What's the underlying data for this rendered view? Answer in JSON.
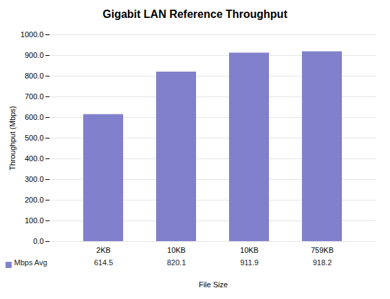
{
  "chart_data": {
    "type": "bar",
    "title": "Gigabit LAN Reference Throughput",
    "categories": [
      "2KB",
      "10KB",
      "10KB",
      "759KB"
    ],
    "series": [
      {
        "name": "Mbps Avg",
        "color": "#8080cc",
        "values": [
          614.5,
          820.1,
          911.9,
          918.2
        ]
      }
    ],
    "xlabel": "File Size",
    "ylabel": "Throughput (Mbps)",
    "ylim": [
      0,
      1000
    ],
    "yticks": [
      {
        "value": 0,
        "label": "0.0"
      },
      {
        "value": 100,
        "label": "100.0"
      },
      {
        "value": 200,
        "label": "200.0"
      },
      {
        "value": 300,
        "label": "300.0"
      },
      {
        "value": 400,
        "label": "400.0"
      },
      {
        "value": 500,
        "label": "500.0"
      },
      {
        "value": 600,
        "label": "600.0"
      },
      {
        "value": 700,
        "label": "700.0"
      },
      {
        "value": 800,
        "label": "800.0"
      },
      {
        "value": 900,
        "label": "900.0"
      },
      {
        "value": 1000,
        "label": "1000.0"
      }
    ],
    "grid": true,
    "data_labels": true
  }
}
